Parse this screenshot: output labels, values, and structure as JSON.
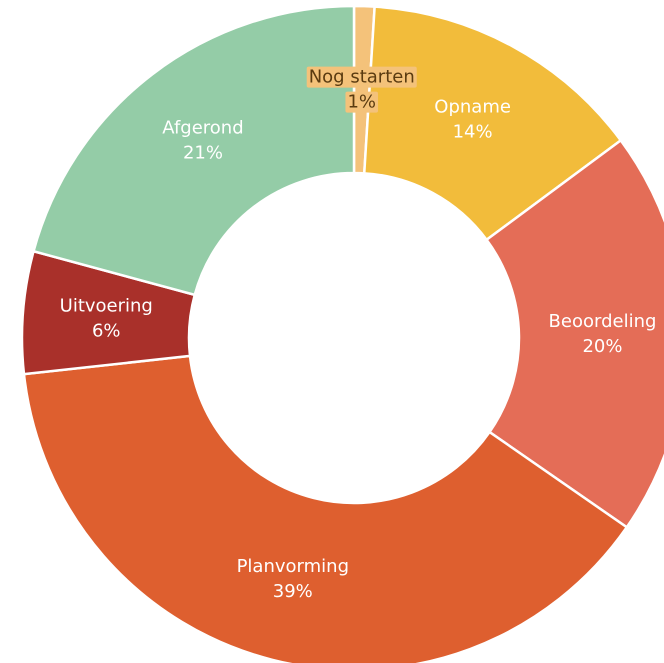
{
  "chart_data": {
    "type": "donut",
    "categories": [
      "Nog starten",
      "Opname",
      "Beoordeling",
      "Planvorming",
      "Uitvoering",
      "Afgerond"
    ],
    "values": [
      1,
      14,
      20,
      39,
      6,
      21
    ],
    "value_labels": [
      "1%",
      "14%",
      "20%",
      "39%",
      "6%",
      "21%"
    ],
    "colors": [
      "#f4c27a",
      "#f2bc3b",
      "#e46d57",
      "#de5f2f",
      "#a9302a",
      "#94cca7"
    ]
  }
}
